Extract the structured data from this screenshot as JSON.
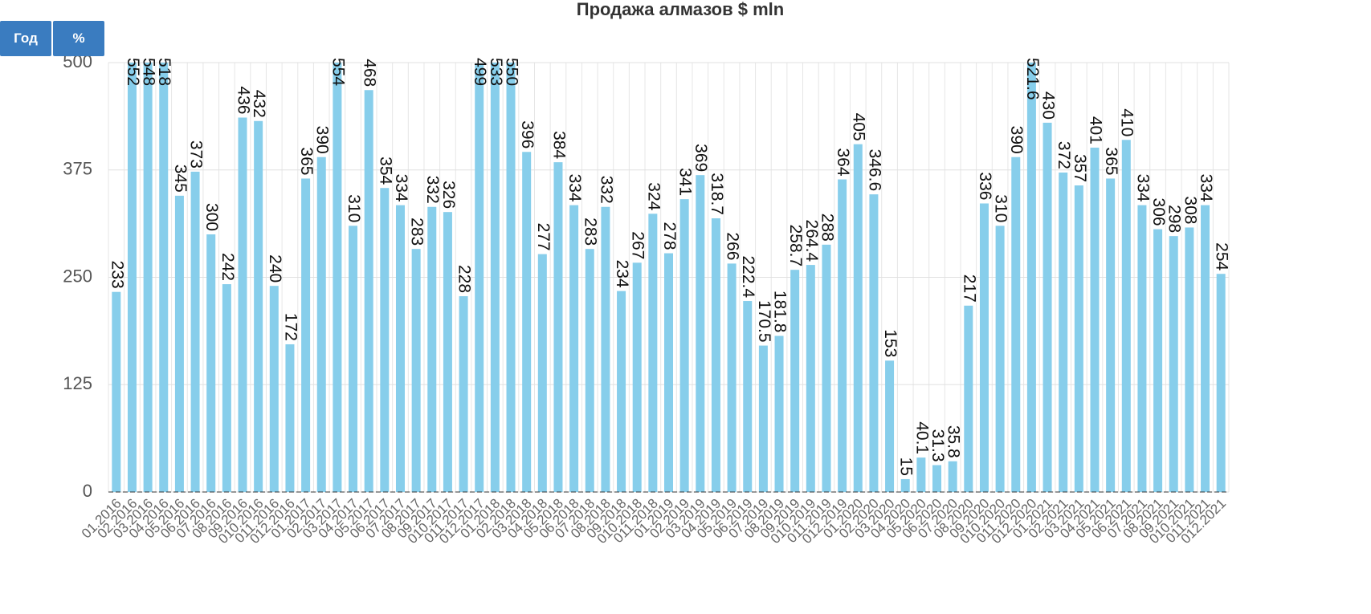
{
  "buttons": [
    "Год",
    "%"
  ],
  "chart_data": {
    "type": "bar",
    "title": "Продажа алмазов $ mln",
    "color": "#87ceeb",
    "categories": [
      "01.2016",
      "02.2016",
      "03.2016",
      "04.2016",
      "05.2016",
      "06.2016",
      "07.2016",
      "08.2016",
      "09.2016",
      "010.2016",
      "011.2016",
      "012.2016",
      "01.2017",
      "02.2017",
      "03.2017",
      "04.2017",
      "05.2017",
      "06.2017",
      "07.2017",
      "08.2017",
      "09.2017",
      "010.2017",
      "011.2017",
      "012.2017",
      "01.2018",
      "02.2018",
      "03.2018",
      "04.2018",
      "05.2018",
      "06.2018",
      "07.2018",
      "08.2018",
      "09.2018",
      "010.2018",
      "011.2018",
      "01.2019",
      "02.2019",
      "03.2019",
      "04.2019",
      "05.2019",
      "06.2019",
      "07.2019",
      "08.2019",
      "09.2019",
      "010.2019",
      "011.2019",
      "012.2019",
      "01.2020",
      "02.2020",
      "03.2020",
      "04.2020",
      "05.2020",
      "06.2020",
      "07.2020",
      "08.2020",
      "09.2020",
      "010.2020",
      "011.2020",
      "012.2020",
      "01.2021",
      "02.2021",
      "03.2021",
      "04.2021",
      "05.2021",
      "06.2021",
      "07.2021",
      "08.2021",
      "09.2021",
      "010.2021",
      "011.2021",
      "012.2021"
    ],
    "values": [
      233,
      552,
      548,
      518,
      345,
      373,
      300,
      242,
      436,
      432,
      240,
      172,
      365,
      390,
      554,
      310,
      468,
      354,
      334,
      283,
      332,
      326,
      228,
      499,
      533,
      550,
      396,
      277,
      384,
      334,
      283,
      332,
      234,
      267,
      324,
      278,
      341,
      369,
      318.7,
      266,
      222.4,
      170.5,
      181.8,
      258.7,
      264.4,
      288,
      364,
      405,
      346.6,
      153,
      15,
      40.1,
      31.3,
      35.8,
      217,
      336,
      310,
      390,
      521.6,
      430,
      372,
      357,
      401,
      365,
      410,
      334,
      306,
      298,
      308,
      334,
      254
    ],
    "ylim": [
      0,
      500
    ],
    "yticks": [
      0,
      125,
      250,
      375,
      500
    ],
    "grid": true
  }
}
